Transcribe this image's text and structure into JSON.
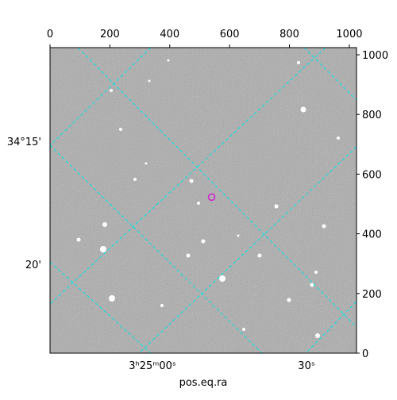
{
  "chart_data": {
    "type": "image",
    "xlabel": "pos.eq.ra",
    "xlim": [
      0,
      1024
    ],
    "ylim": [
      0,
      1024
    ],
    "xticks": [
      0,
      200,
      400,
      600,
      800,
      1000
    ],
    "yticks": [
      0,
      200,
      400,
      600,
      800,
      1000
    ],
    "ra_labels": [
      "3ʰ25ᵐ00ˢ",
      "30ˢ"
    ],
    "dec_labels": [
      "34°15'",
      "20'"
    ],
    "grid_color": "#00e5e5",
    "marker": {
      "x": 540,
      "y": 523,
      "color": "#d020d0"
    }
  }
}
